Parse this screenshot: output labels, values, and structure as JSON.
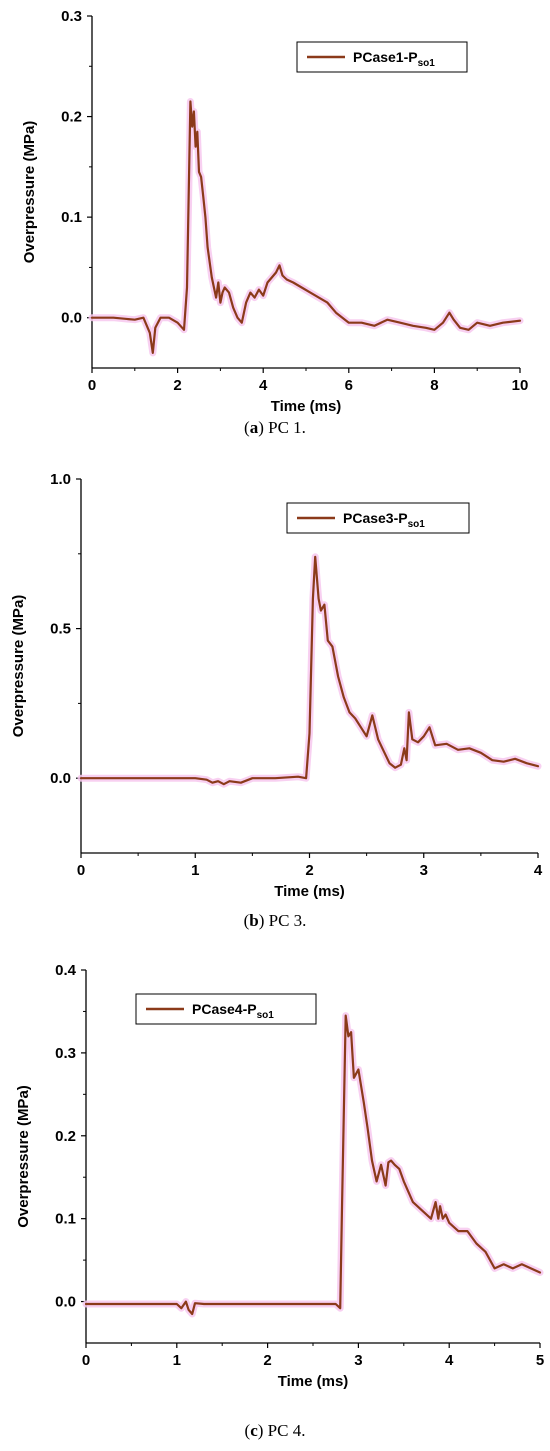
{
  "colors": {
    "series": "#8B3A1A",
    "halo": "#f7c8ee",
    "axis": "#000000"
  },
  "chart_data": [
    {
      "type": "line",
      "xlabel": "Time (ms)",
      "ylabel": "Overpressure (MPa)",
      "xlim": [
        0,
        10
      ],
      "ylim": [
        -0.05,
        0.3
      ],
      "xticks": [
        "0",
        "2",
        "4",
        "6",
        "8",
        "10"
      ],
      "yticks": [
        "0.0",
        "0.1",
        "0.2",
        "0.3"
      ],
      "legend": "top-right",
      "grid": false,
      "series": [
        {
          "name": "PCase1-P",
          "name_sub": "so1",
          "x": [
            0,
            0.5,
            1.0,
            1.2,
            1.35,
            1.42,
            1.48,
            1.6,
            1.8,
            2.0,
            2.15,
            2.22,
            2.27,
            2.3,
            2.34,
            2.38,
            2.42,
            2.46,
            2.5,
            2.55,
            2.6,
            2.65,
            2.7,
            2.8,
            2.9,
            2.95,
            3.0,
            3.05,
            3.1,
            3.2,
            3.3,
            3.4,
            3.5,
            3.6,
            3.7,
            3.8,
            3.9,
            4.0,
            4.1,
            4.2,
            4.3,
            4.38,
            4.45,
            4.55,
            4.7,
            4.9,
            5.1,
            5.3,
            5.5,
            5.7,
            6.0,
            6.3,
            6.6,
            6.9,
            7.2,
            7.5,
            7.8,
            8.0,
            8.2,
            8.35,
            8.45,
            8.6,
            8.8,
            9.0,
            9.3,
            9.6,
            10.0
          ],
          "values": [
            0.0,
            0.0,
            -0.002,
            0.0,
            -0.015,
            -0.035,
            -0.01,
            0.0,
            0.0,
            -0.005,
            -0.012,
            0.03,
            0.15,
            0.215,
            0.19,
            0.205,
            0.17,
            0.185,
            0.145,
            0.14,
            0.12,
            0.1,
            0.07,
            0.04,
            0.02,
            0.035,
            0.015,
            0.025,
            0.03,
            0.025,
            0.01,
            0.0,
            -0.005,
            0.015,
            0.025,
            0.02,
            0.028,
            0.022,
            0.035,
            0.04,
            0.045,
            0.052,
            0.042,
            0.038,
            0.035,
            0.03,
            0.025,
            0.02,
            0.015,
            0.005,
            -0.005,
            -0.005,
            -0.008,
            -0.002,
            -0.005,
            -0.008,
            -0.01,
            -0.012,
            -0.005,
            0.005,
            -0.002,
            -0.01,
            -0.012,
            -0.005,
            -0.008,
            -0.005,
            -0.003
          ]
        }
      ],
      "caption": {
        "letter": "a",
        "text": " PC 1."
      }
    },
    {
      "type": "line",
      "xlabel": "Time (ms)",
      "ylabel": "Overpressure (MPa)",
      "xlim": [
        0,
        4
      ],
      "ylim": [
        -0.25,
        1.0
      ],
      "xticks": [
        "0",
        "1",
        "2",
        "3",
        "4"
      ],
      "yticks": [
        "0.0",
        "0.5",
        "1.0"
      ],
      "legend": "top-right",
      "grid": false,
      "series": [
        {
          "name": "PCase3-P",
          "name_sub": "so1",
          "x": [
            0,
            0.5,
            1.0,
            1.1,
            1.15,
            1.2,
            1.25,
            1.3,
            1.4,
            1.5,
            1.7,
            1.9,
            1.97,
            2.0,
            2.03,
            2.05,
            2.08,
            2.1,
            2.13,
            2.16,
            2.2,
            2.25,
            2.3,
            2.35,
            2.4,
            2.45,
            2.5,
            2.55,
            2.6,
            2.65,
            2.7,
            2.75,
            2.8,
            2.83,
            2.85,
            2.87,
            2.9,
            2.95,
            3.0,
            3.05,
            3.1,
            3.2,
            3.3,
            3.4,
            3.5,
            3.6,
            3.7,
            3.8,
            3.9,
            4.0
          ],
          "values": [
            0.0,
            0.0,
            0.0,
            -0.005,
            -0.015,
            -0.01,
            -0.02,
            -0.01,
            -0.015,
            0.0,
            0.0,
            0.005,
            0.0,
            0.15,
            0.6,
            0.74,
            0.6,
            0.56,
            0.58,
            0.46,
            0.44,
            0.34,
            0.27,
            0.22,
            0.2,
            0.17,
            0.14,
            0.21,
            0.13,
            0.09,
            0.05,
            0.035,
            0.045,
            0.1,
            0.06,
            0.22,
            0.13,
            0.12,
            0.14,
            0.17,
            0.11,
            0.115,
            0.095,
            0.1,
            0.085,
            0.06,
            0.055,
            0.065,
            0.05,
            0.04
          ]
        }
      ],
      "caption": {
        "letter": "b",
        "text": " PC 3."
      }
    },
    {
      "type": "line",
      "xlabel": "Time (ms)",
      "ylabel": "Overpressure (MPa)",
      "xlim": [
        0,
        5
      ],
      "ylim": [
        -0.05,
        0.4
      ],
      "xticks": [
        "0",
        "1",
        "2",
        "3",
        "4",
        "5"
      ],
      "yticks": [
        "0.0",
        "0.1",
        "0.2",
        "0.3",
        "0.4"
      ],
      "legend": "top-left",
      "grid": false,
      "series": [
        {
          "name": "PCase4-P",
          "name_sub": "so1",
          "x": [
            0,
            0.5,
            1.0,
            1.05,
            1.1,
            1.13,
            1.17,
            1.2,
            1.3,
            1.5,
            2.0,
            2.5,
            2.75,
            2.8,
            2.82,
            2.86,
            2.89,
            2.92,
            2.95,
            3.0,
            3.03,
            3.06,
            3.1,
            3.15,
            3.2,
            3.25,
            3.28,
            3.3,
            3.33,
            3.36,
            3.4,
            3.45,
            3.5,
            3.6,
            3.7,
            3.8,
            3.85,
            3.88,
            3.9,
            3.93,
            3.96,
            4.0,
            4.1,
            4.2,
            4.3,
            4.4,
            4.5,
            4.6,
            4.7,
            4.8,
            4.9,
            5.0
          ],
          "values": [
            -0.003,
            -0.003,
            -0.003,
            -0.008,
            0.0,
            -0.01,
            -0.015,
            -0.002,
            -0.003,
            -0.003,
            -0.003,
            -0.003,
            -0.003,
            -0.008,
            0.12,
            0.345,
            0.32,
            0.325,
            0.27,
            0.28,
            0.26,
            0.24,
            0.21,
            0.17,
            0.145,
            0.165,
            0.15,
            0.14,
            0.168,
            0.17,
            0.165,
            0.16,
            0.145,
            0.12,
            0.11,
            0.1,
            0.12,
            0.1,
            0.115,
            0.1,
            0.105,
            0.095,
            0.085,
            0.085,
            0.07,
            0.06,
            0.04,
            0.045,
            0.04,
            0.045,
            0.04,
            0.035
          ]
        }
      ],
      "caption": {
        "letter": "c",
        "text": " PC 4."
      }
    }
  ]
}
